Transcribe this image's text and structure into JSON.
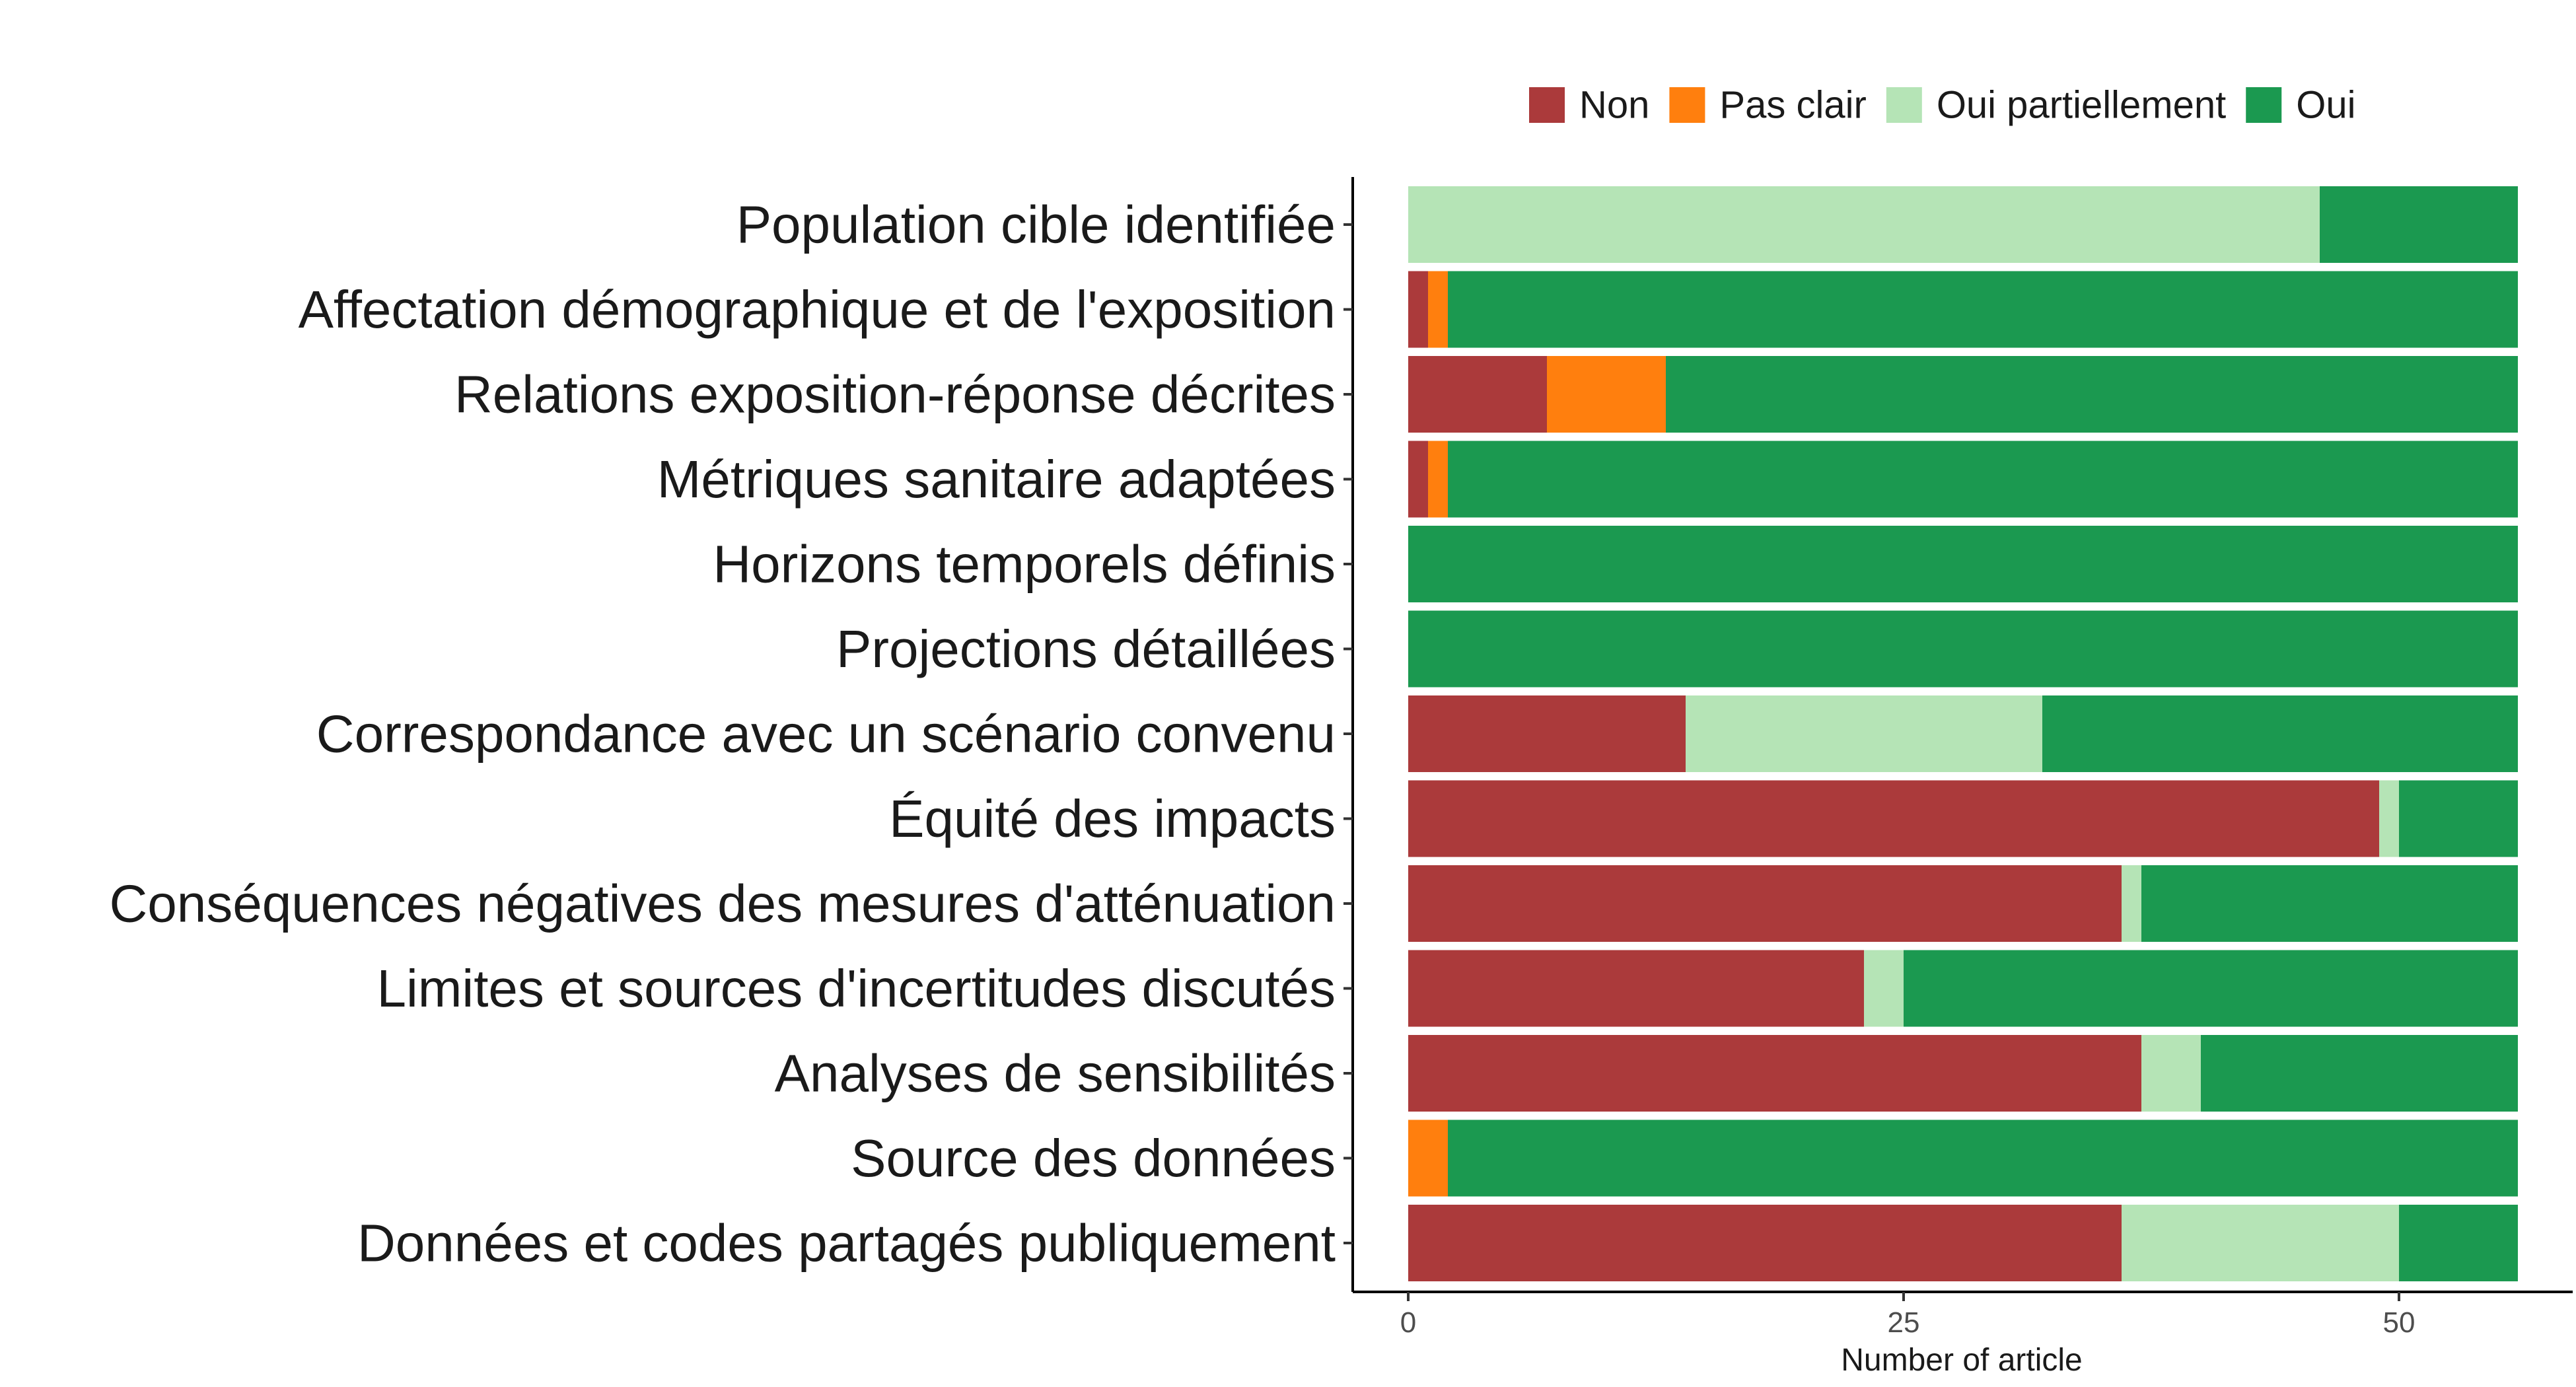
{
  "chart_data": {
    "type": "bar",
    "orientation": "horizontal",
    "stacked": true,
    "xlabel": "Number of article",
    "ylabel": "",
    "xlim": [
      0,
      56
    ],
    "x_ticks": [
      0,
      25,
      50
    ],
    "grid": false,
    "legend_position": "top",
    "categories": [
      "Population cible identifiée",
      "Affectation démographique et de l'exposition",
      "Relations exposition-réponse décrites",
      "Métriques sanitaire adaptées",
      "Horizons temporels définis",
      "Projections détaillées",
      "Correspondance avec un scénario convenu",
      "Équité des impacts",
      "Conséquences négatives des mesures d'atténuation",
      "Limites et sources d'incertitudes discutés",
      "Analyses de sensibilités",
      "Source des données",
      "Données et codes partagés publiquement"
    ],
    "series": [
      {
        "name": "Non",
        "color": "#AB3A3B",
        "values": [
          0,
          1,
          7,
          1,
          0,
          0,
          14,
          49,
          36,
          23,
          37,
          0,
          36
        ]
      },
      {
        "name": "Pas clair",
        "color": "#FF7F0E",
        "values": [
          0,
          1,
          6,
          1,
          0,
          0,
          0,
          0,
          0,
          0,
          0,
          2,
          0
        ]
      },
      {
        "name": "Oui partiellement",
        "color": "#B5E4B6",
        "values": [
          46,
          0,
          0,
          0,
          0,
          0,
          18,
          1,
          1,
          2,
          3,
          0,
          14
        ]
      },
      {
        "name": "Oui",
        "color": "#1B9950",
        "values": [
          10,
          54,
          43,
          54,
          56,
          56,
          24,
          6,
          19,
          31,
          16,
          54,
          6
        ]
      }
    ]
  }
}
